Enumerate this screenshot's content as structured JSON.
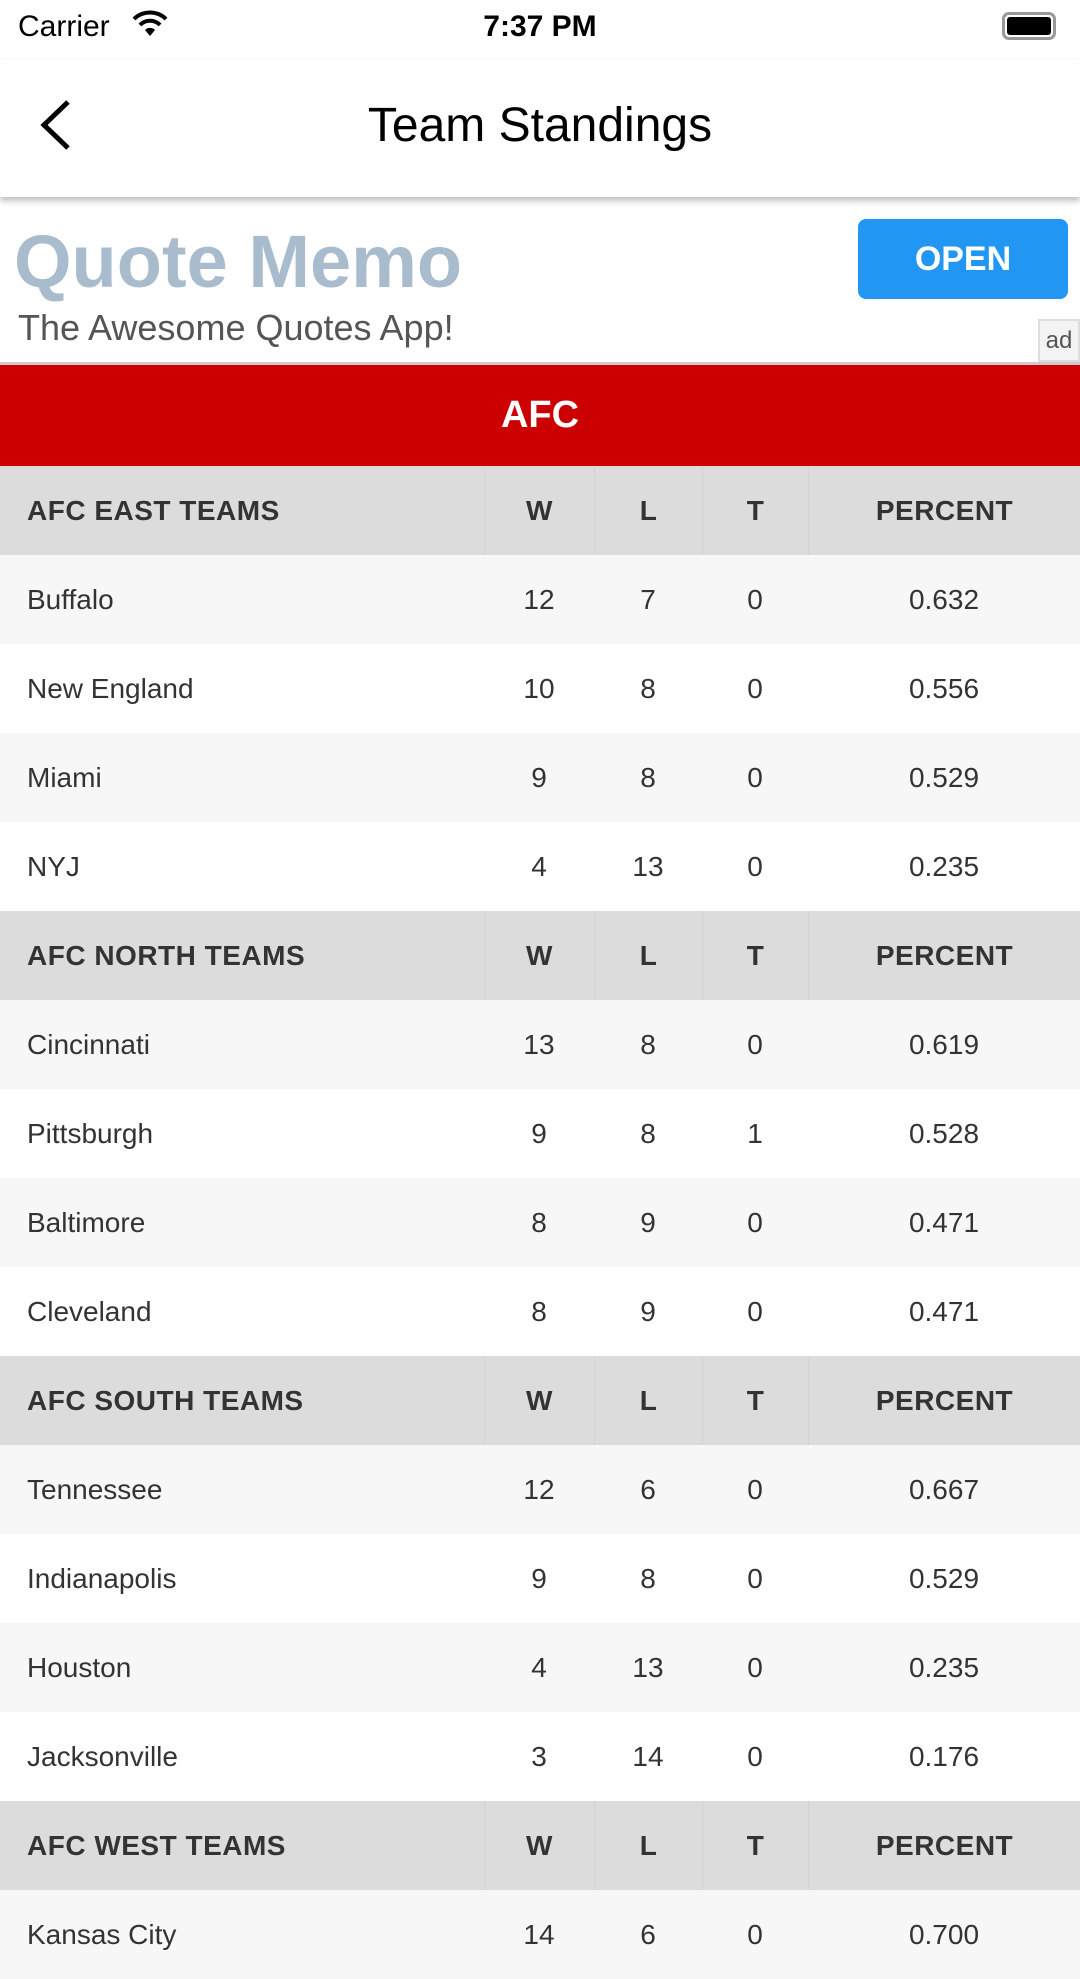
{
  "status_bar": {
    "carrier": "Carrier",
    "time": "7:37 PM"
  },
  "nav": {
    "title": "Team Standings"
  },
  "ad": {
    "title": "Quote Memo",
    "subtitle": "The Awesome Quotes App!",
    "button": "OPEN",
    "tag": "ad",
    "title_color": "#a9bccd",
    "button_color": "#2196f3"
  },
  "conference": {
    "name": "AFC",
    "color": "#cc0000"
  },
  "columns": [
    "W",
    "L",
    "T",
    "PERCENT"
  ],
  "divisions": [
    {
      "name": "AFC EAST TEAMS",
      "teams": [
        [
          "Buffalo",
          "12",
          "7",
          "0",
          "0.632"
        ],
        [
          "New England",
          "10",
          "8",
          "0",
          "0.556"
        ],
        [
          "Miami",
          "9",
          "8",
          "0",
          "0.529"
        ],
        [
          "NYJ",
          "4",
          "13",
          "0",
          "0.235"
        ]
      ]
    },
    {
      "name": "AFC NORTH TEAMS",
      "teams": [
        [
          "Cincinnati",
          "13",
          "8",
          "0",
          "0.619"
        ],
        [
          "Pittsburgh",
          "9",
          "8",
          "1",
          "0.528"
        ],
        [
          "Baltimore",
          "8",
          "9",
          "0",
          "0.471"
        ],
        [
          "Cleveland",
          "8",
          "9",
          "0",
          "0.471"
        ]
      ]
    },
    {
      "name": "AFC SOUTH TEAMS",
      "teams": [
        [
          "Tennessee",
          "12",
          "6",
          "0",
          "0.667"
        ],
        [
          "Indianapolis",
          "9",
          "8",
          "0",
          "0.529"
        ],
        [
          "Houston",
          "4",
          "13",
          "0",
          "0.235"
        ],
        [
          "Jacksonville",
          "3",
          "14",
          "0",
          "0.176"
        ]
      ]
    },
    {
      "name": "AFC WEST TEAMS",
      "teams": [
        [
          "Kansas City",
          "14",
          "6",
          "0",
          "0.700"
        ]
      ]
    }
  ]
}
